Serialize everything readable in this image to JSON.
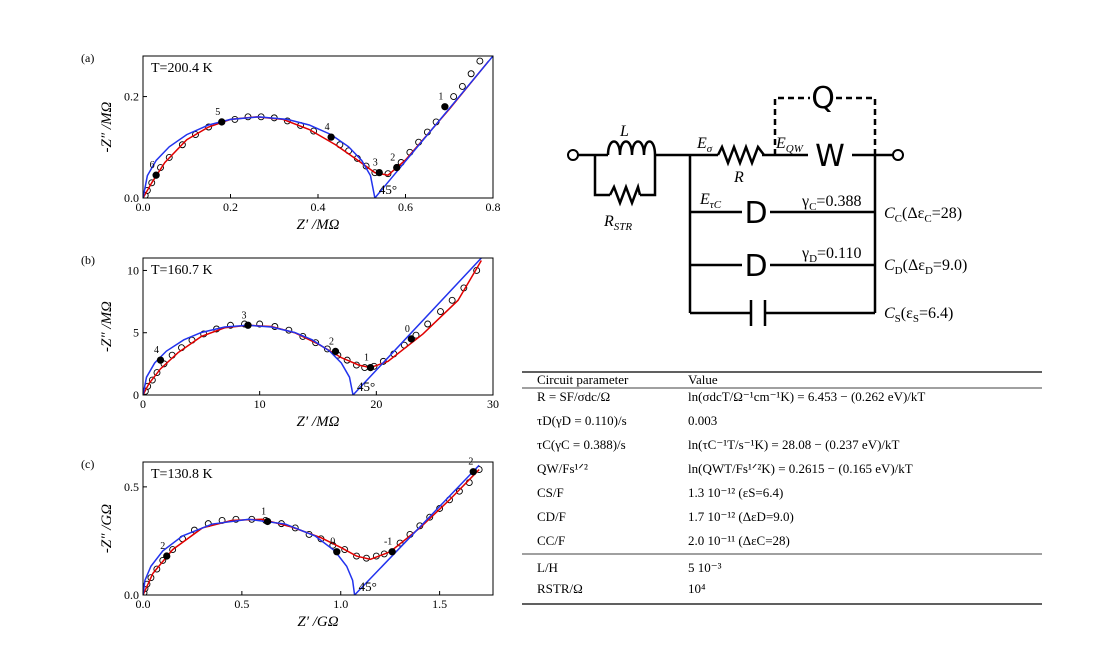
{
  "chart_data": [
    {
      "type": "scatter",
      "panel": "(a)",
      "annotation": "T=200.4 K",
      "angle_label": "45°",
      "x_label": "Z′ /MΩ",
      "y_label": "-Z″ /MΩ",
      "xlim": [
        0,
        0.8
      ],
      "ylim": [
        0,
        0.28
      ],
      "xticks": [
        {
          "value": 0,
          "label": "0.0"
        },
        0.2,
        0.4,
        0.6,
        0.8
      ],
      "yticks": [
        {
          "value": 0,
          "label": "0.0"
        },
        0.2
      ],
      "series": [
        {
          "mode": "markers",
          "color": "#000000",
          "x": [
            0.005,
            0.01,
            0.02,
            0.04,
            0.06,
            0.09,
            0.12,
            0.15,
            0.21,
            0.24,
            0.27,
            0.3,
            0.33,
            0.36,
            0.39,
            0.45,
            0.47,
            0.49,
            0.51,
            0.53,
            0.56,
            0.59,
            0.61,
            0.63,
            0.65,
            0.67,
            0.71,
            0.73,
            0.75,
            0.77,
            0.79
          ],
          "values": [
            0.005,
            0.015,
            0.03,
            0.06,
            0.08,
            0.105,
            0.125,
            0.14,
            0.155,
            0.16,
            0.16,
            0.158,
            0.152,
            0.143,
            0.132,
            0.105,
            0.093,
            0.078,
            0.063,
            0.05,
            0.048,
            0.07,
            0.09,
            0.11,
            0.13,
            0.15,
            0.2,
            0.22,
            0.245,
            0.27,
            0.29
          ]
        },
        {
          "mode": "line",
          "color": "#e00000",
          "x": [
            0,
            0.02,
            0.05,
            0.1,
            0.15,
            0.2,
            0.26,
            0.32,
            0.38,
            0.44,
            0.49,
            0.53,
            0.56,
            0.6,
            0.7,
            0.79
          ],
          "values": [
            0,
            0.03,
            0.07,
            0.115,
            0.14,
            0.155,
            0.16,
            0.155,
            0.135,
            0.105,
            0.075,
            0.05,
            0.045,
            0.075,
            0.175,
            0.27
          ]
        },
        {
          "mode": "line",
          "color": "#2233ee",
          "x": [
            0,
            0.01,
            0.03,
            0.06,
            0.1,
            0.15,
            0.2,
            0.265,
            0.33,
            0.38,
            0.43,
            0.47,
            0.5,
            0.52,
            0.53,
            0.8
          ],
          "values": [
            0,
            0.044,
            0.074,
            0.101,
            0.125,
            0.144,
            0.155,
            0.16,
            0.155,
            0.144,
            0.125,
            0.101,
            0.074,
            0.044,
            0,
            0.28
          ]
        },
        {
          "mode": "labeled-markers",
          "color": "#000000",
          "x": [
            0.69,
            0.58,
            0.54,
            0.43,
            0.18,
            0.03
          ],
          "values": [
            0.18,
            0.06,
            0.05,
            0.12,
            0.15,
            0.045
          ],
          "labels": [
            "1",
            "2",
            "3",
            "4",
            "5",
            "6"
          ]
        }
      ]
    },
    {
      "type": "scatter",
      "panel": "(b)",
      "annotation": "T=160.7 K",
      "angle_label": "45°",
      "x_label": "Z′ /MΩ",
      "y_label": "-Z″ /MΩ",
      "xlim": [
        0,
        30
      ],
      "ylim": [
        0,
        11
      ],
      "xticks": [
        0,
        10,
        20,
        30
      ],
      "yticks": [
        0,
        5,
        10
      ],
      "series": [
        {
          "mode": "markers",
          "color": "#000000",
          "x": [
            0.2,
            0.4,
            0.8,
            1.2,
            1.8,
            2.5,
            3.3,
            4.2,
            5.2,
            6.3,
            7.5,
            8.7,
            10,
            11.3,
            12.5,
            13.7,
            14.8,
            15.8,
            16.7,
            17.5,
            18.3,
            19,
            19.8,
            20.6,
            21.5,
            22.4,
            23.4,
            24.4,
            25.5,
            26.5,
            27.5,
            28.6
          ],
          "values": [
            0.3,
            0.7,
            1.2,
            1.8,
            2.5,
            3.2,
            3.8,
            4.4,
            4.9,
            5.3,
            5.6,
            5.7,
            5.7,
            5.5,
            5.2,
            4.7,
            4.2,
            3.7,
            3.2,
            2.8,
            2.4,
            2.2,
            2.3,
            2.7,
            3.3,
            4.0,
            4.8,
            5.7,
            6.7,
            7.6,
            8.6,
            10
          ]
        },
        {
          "mode": "line",
          "color": "#e00000",
          "x": [
            0,
            0.5,
            1.5,
            3,
            5,
            7,
            9,
            11,
            13,
            15,
            17,
            18.5,
            19.5,
            21,
            24,
            27,
            29
          ],
          "values": [
            0,
            0.9,
            2.1,
            3.4,
            4.7,
            5.4,
            5.6,
            5.5,
            5.0,
            4.1,
            3.0,
            2.4,
            2.2,
            2.7,
            4.9,
            7.6,
            10.8
          ]
        },
        {
          "mode": "line",
          "color": "#2233ee",
          "x": [
            0,
            0.3,
            1,
            2,
            3.5,
            5,
            7,
            9,
            11,
            13,
            14.5,
            16,
            17,
            17.7,
            18,
            29
          ],
          "values": [
            0,
            1.43,
            2.57,
            3.52,
            4.43,
            5.02,
            5.46,
            5.6,
            5.46,
            5.02,
            4.43,
            3.52,
            2.57,
            1.43,
            0,
            11
          ]
        },
        {
          "mode": "labeled-markers",
          "color": "#000000",
          "x": [
            23,
            19.5,
            16.5,
            9,
            1.5
          ],
          "values": [
            4.5,
            2.2,
            3.5,
            5.6,
            2.8
          ],
          "labels": [
            "0",
            "1",
            "2",
            "3",
            "4"
          ]
        }
      ]
    },
    {
      "type": "scatter",
      "panel": "(c)",
      "annotation": "T=130.8 K",
      "angle_label": "45°",
      "x_label": "Z′ /GΩ",
      "y_label": "-Z″ /GΩ",
      "xlim": [
        0,
        1.77
      ],
      "ylim": [
        0,
        0.615
      ],
      "xticks": [
        {
          "value": 0,
          "label": "0.0"
        },
        0.5,
        {
          "value": 1,
          "label": "1.0"
        },
        1.5
      ],
      "yticks": [
        {
          "value": 0,
          "label": "0.0"
        },
        0.5
      ],
      "series": [
        {
          "mode": "markers",
          "color": "#000000",
          "x": [
            0.005,
            0.01,
            0.02,
            0.04,
            0.07,
            0.1,
            0.15,
            0.2,
            0.26,
            0.33,
            0.4,
            0.47,
            0.55,
            0.62,
            0.7,
            0.77,
            0.84,
            0.9,
            0.96,
            1.02,
            1.08,
            1.13,
            1.18,
            1.22,
            1.3,
            1.35,
            1.4,
            1.45,
            1.5,
            1.55,
            1.6,
            1.65,
            1.7
          ],
          "values": [
            0.01,
            0.03,
            0.05,
            0.08,
            0.12,
            0.16,
            0.21,
            0.26,
            0.3,
            0.33,
            0.345,
            0.35,
            0.35,
            0.345,
            0.33,
            0.31,
            0.28,
            0.26,
            0.23,
            0.21,
            0.18,
            0.17,
            0.18,
            0.19,
            0.24,
            0.28,
            0.32,
            0.36,
            0.4,
            0.44,
            0.48,
            0.52,
            0.58
          ]
        },
        {
          "mode": "line",
          "color": "#e00000",
          "x": [
            0,
            0.05,
            0.15,
            0.3,
            0.45,
            0.6,
            0.75,
            0.9,
            1.0,
            1.08,
            1.15,
            1.25,
            1.4,
            1.55,
            1.7
          ],
          "values": [
            0,
            0.1,
            0.21,
            0.31,
            0.345,
            0.35,
            0.315,
            0.265,
            0.22,
            0.18,
            0.165,
            0.2,
            0.31,
            0.44,
            0.58
          ]
        },
        {
          "mode": "line",
          "color": "#2233ee",
          "x": [
            0,
            0.01,
            0.04,
            0.1,
            0.2,
            0.35,
            0.535,
            0.72,
            0.87,
            0.97,
            1.03,
            1.06,
            1.07,
            1.7
          ],
          "values": [
            0,
            0.068,
            0.133,
            0.204,
            0.273,
            0.328,
            0.35,
            0.328,
            0.273,
            0.204,
            0.133,
            0.068,
            0,
            0.6
          ]
        },
        {
          "mode": "labeled-markers",
          "color": "#000000",
          "x": [
            1.67,
            1.26,
            0.98,
            0.63,
            0.12
          ],
          "values": [
            0.57,
            0.2,
            0.2,
            0.34,
            0.18
          ],
          "labels": [
            "-2",
            "-1",
            "0",
            "1",
            "2"
          ]
        }
      ]
    }
  ],
  "circuit": {
    "inductor": "L",
    "shunt": {
      "base": "R",
      "sub": "STR"
    },
    "e_sigma": {
      "base": "E",
      "sub": "σ"
    },
    "resistor": "R",
    "e_qw": {
      "base": "E",
      "sub": "QW"
    },
    "q": "Q",
    "w": "W",
    "e_tau": {
      "base": "E",
      "sub": "τC"
    },
    "d1": "D",
    "gamma_c": {
      "base": "γ",
      "sub": "C",
      "rest": "=0.388"
    },
    "c_c": {
      "base": "C",
      "sub": "C",
      "rest": "(Δε",
      "sub2": "C",
      "rest2": "=28)"
    },
    "d2": "D",
    "gamma_d": {
      "base": "γ",
      "sub": "D",
      "rest": "=0.110"
    },
    "c_d": {
      "base": "C",
      "sub": "D",
      "rest": "(Δε",
      "sub2": "D",
      "rest2": "=9.0)"
    },
    "c_s": {
      "base": "C",
      "sub": "S",
      "rest": "(ε",
      "sub2": "S",
      "rest2": "=6.4)"
    }
  },
  "table": {
    "header": [
      "Circuit parameter",
      "Value"
    ],
    "groups": [
      [
        [
          "R = SF/σdc/Ω",
          "ln(σdcT/Ω⁻¹cm⁻¹K) = 6.453 − (0.262 eV)/kT"
        ],
        [
          "τD(γD = 0.110)/s",
          "0.003"
        ],
        [
          "τC(γC = 0.388)/s",
          "ln(τC⁻¹T/s⁻¹K) = 28.08 − (0.237 eV)/kT"
        ],
        [
          "QW/Fs¹ᐟ²",
          "ln(QWT/Fs¹ᐟ²K) = 0.2615 − (0.165 eV)/kT"
        ],
        [
          "CS/F",
          "1.3 10⁻¹² (εS=6.4)"
        ],
        [
          "CD/F",
          "1.7 10⁻¹² (ΔεD=9.0)"
        ],
        [
          "CC/F",
          "2.0 10⁻¹¹ (ΔεC=28)"
        ]
      ],
      [
        [
          "L/H",
          "5 10⁻³"
        ],
        [
          "RSTR/Ω",
          "10⁴"
        ]
      ]
    ]
  }
}
